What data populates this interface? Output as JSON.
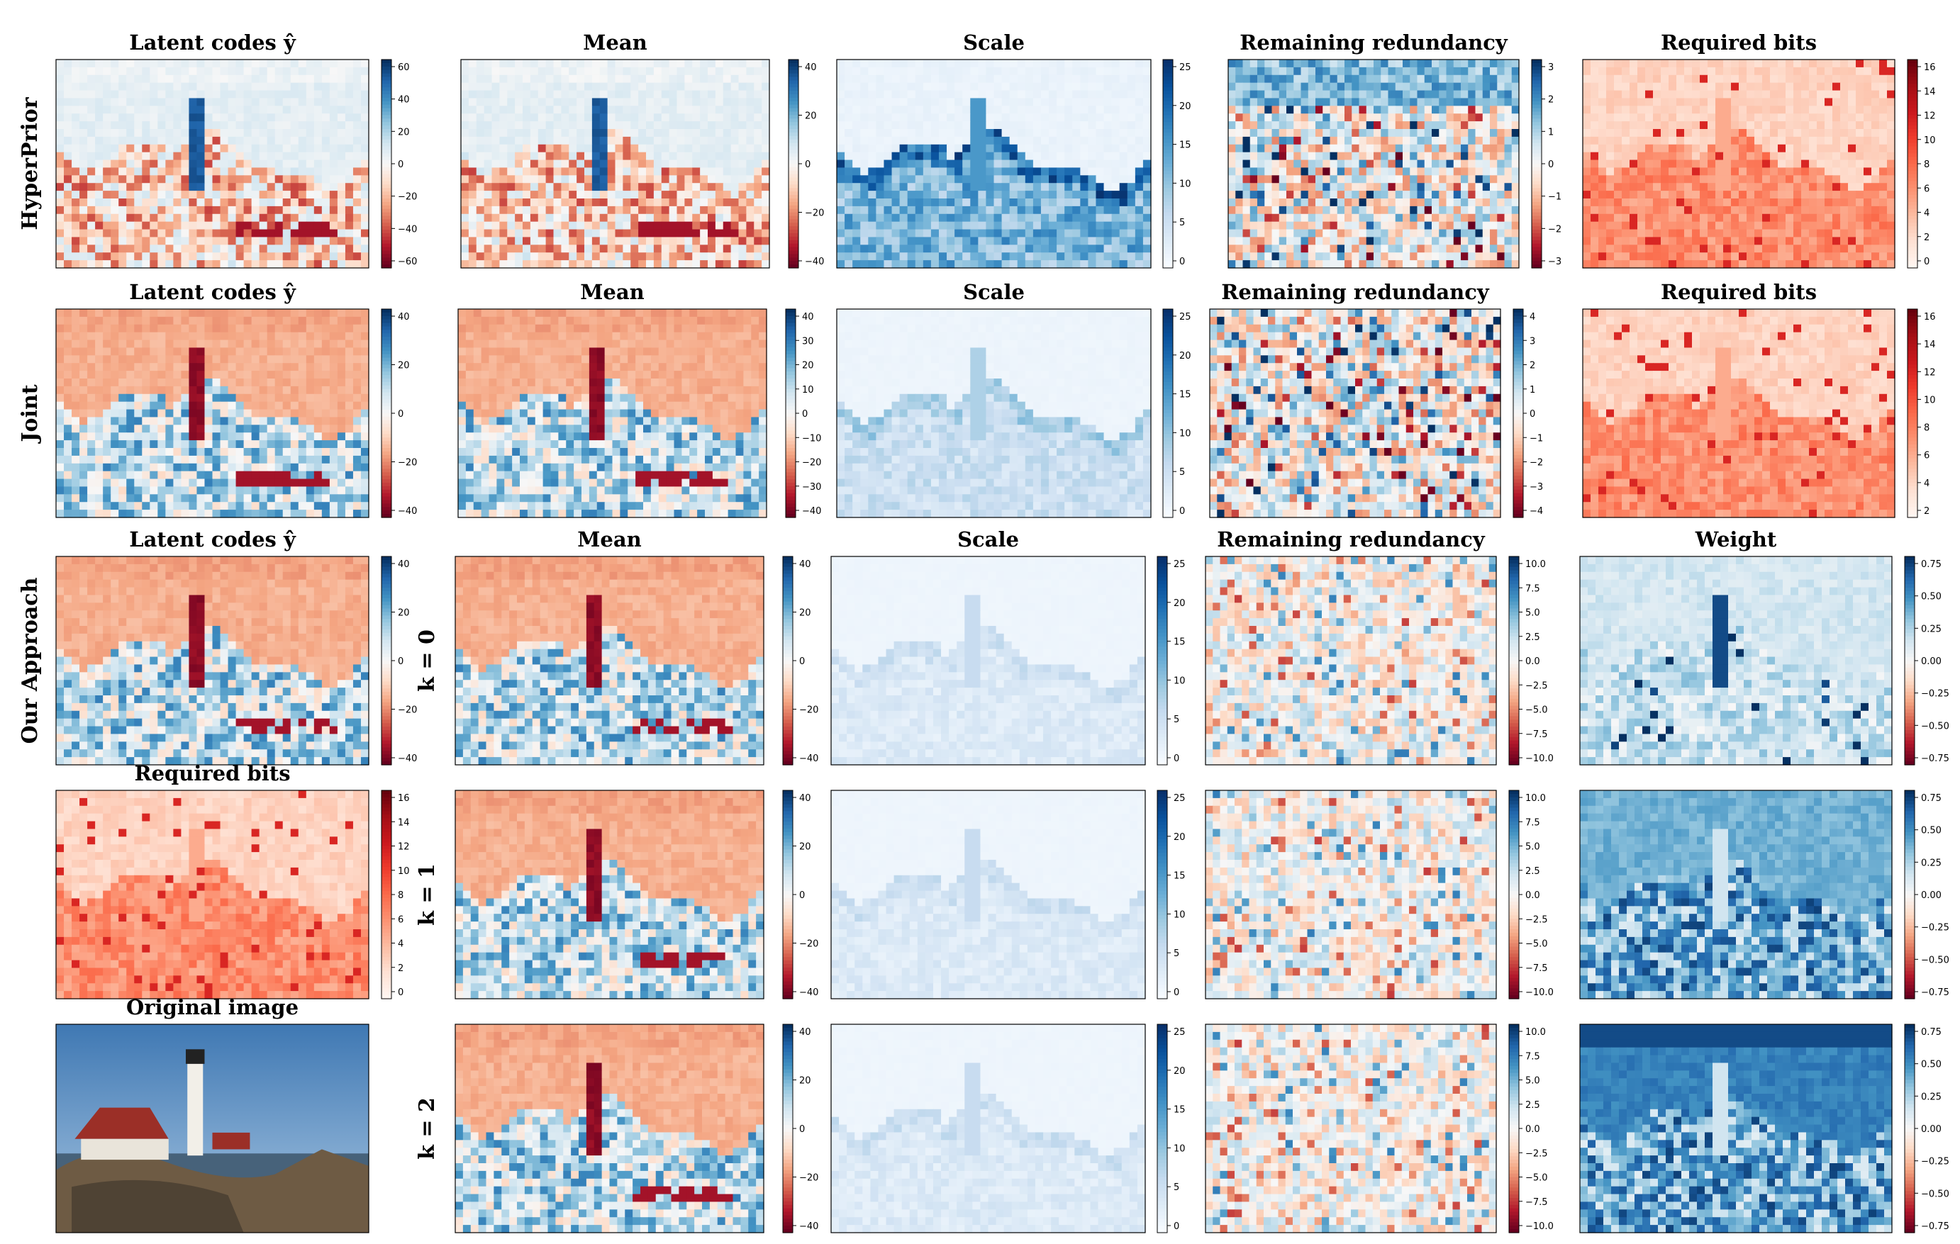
{
  "figure": {
    "rows": [
      {
        "label": "HyperPrior",
        "panels": [
          {
            "title": "Latent codes  ŷ",
            "type": "latent",
            "cmap": "RdBu",
            "ticks": [
              "60",
              "40",
              "20",
              "0",
              "−20",
              "−40",
              "−60"
            ]
          },
          {
            "title": "Mean",
            "type": "latent",
            "cmap": "RdBu",
            "ticks": [
              "40",
              "20",
              "0",
              "−20",
              "−40"
            ]
          },
          {
            "title": "Scale",
            "type": "scale",
            "cmap": "Blues",
            "ticks": [
              "25",
              "20",
              "15",
              "10",
              "5",
              "0"
            ]
          },
          {
            "title": "Remaining redundancy",
            "type": "noise",
            "cmap": "RdBu",
            "ticks": [
              "3",
              "2",
              "1",
              "0",
              "−1",
              "−2",
              "−3"
            ]
          },
          {
            "title": "Required bits",
            "type": "bits",
            "cmap": "Reds",
            "ticks": [
              "16",
              "14",
              "12",
              "10",
              "8",
              "6",
              "4",
              "2",
              "0"
            ]
          }
        ]
      },
      {
        "label": "Joint",
        "panels": [
          {
            "title": "Latent codes  ŷ",
            "type": "latent",
            "cmap": "RdBu",
            "ticks": [
              "40",
              "20",
              "0",
              "−20",
              "−40"
            ]
          },
          {
            "title": "Mean",
            "type": "latent",
            "cmap": "RdBu",
            "ticks": [
              "40",
              "30",
              "20",
              "10",
              "0",
              "−10",
              "−20",
              "−30",
              "−40"
            ]
          },
          {
            "title": "Scale",
            "type": "scale",
            "cmap": "Blues",
            "ticks": [
              "25",
              "20",
              "15",
              "10",
              "5",
              "0"
            ]
          },
          {
            "title": "Remaining redundancy",
            "type": "noise",
            "cmap": "RdBu",
            "ticks": [
              "4",
              "3",
              "2",
              "1",
              "0",
              "−1",
              "−2",
              "−3",
              "−4"
            ]
          },
          {
            "title": "Required bits",
            "type": "bits",
            "cmap": "Reds",
            "ticks": [
              "16",
              "14",
              "12",
              "10",
              "8",
              "6",
              "4",
              "2"
            ]
          }
        ]
      },
      {
        "label": "Our Approach",
        "k_label": "k = 0",
        "panels": [
          {
            "title": "Latent codes  ŷ",
            "type": "latent",
            "cmap": "RdBu",
            "ticks": [
              "40",
              "20",
              "0",
              "−20",
              "−40"
            ]
          },
          {
            "title": "Mean",
            "type": "latent",
            "cmap": "RdBu",
            "ticks": [
              "40",
              "20",
              "0",
              "−20",
              "−40"
            ]
          },
          {
            "title": "Scale",
            "type": "scale",
            "cmap": "Blues",
            "ticks": [
              "25",
              "20",
              "15",
              "10",
              "5",
              "0"
            ]
          },
          {
            "title": "Remaining redundancy",
            "type": "noise",
            "cmap": "RdBu",
            "ticks": [
              "10.0",
              "7.5",
              "5.0",
              "2.5",
              "0.0",
              "−2.5",
              "−5.0",
              "−7.5",
              "−10.0"
            ]
          },
          {
            "title": "Weight",
            "type": "weight",
            "cmap": "RdBu",
            "ticks": [
              "0.75",
              "0.50",
              "0.25",
              "0.00",
              "−0.25",
              "−0.50",
              "−0.75"
            ]
          }
        ]
      },
      {
        "k_label": "k = 1",
        "panels": [
          {
            "title": "Required bits",
            "type": "bits",
            "cmap": "Reds",
            "ticks": [
              "16",
              "14",
              "12",
              "10",
              "8",
              "6",
              "4",
              "2",
              "0"
            ]
          },
          {
            "title": "",
            "type": "latent",
            "cmap": "RdBu",
            "ticks": [
              "40",
              "20",
              "0",
              "−20",
              "−40"
            ]
          },
          {
            "title": "",
            "type": "scale",
            "cmap": "Blues",
            "ticks": [
              "25",
              "20",
              "15",
              "10",
              "5",
              "0"
            ]
          },
          {
            "title": "",
            "type": "noise",
            "cmap": "RdBu",
            "ticks": [
              "10.0",
              "7.5",
              "5.0",
              "2.5",
              "0.0",
              "−2.5",
              "−5.0",
              "−7.5",
              "−10.0"
            ]
          },
          {
            "title": "",
            "type": "weight",
            "cmap": "RdBu",
            "ticks": [
              "0.75",
              "0.50",
              "0.25",
              "0.00",
              "−0.25",
              "−0.50",
              "−0.75"
            ]
          }
        ]
      },
      {
        "k_label": "k = 2",
        "panels": [
          {
            "title": "Original image",
            "type": "photo",
            "cmap": "",
            "ticks": []
          },
          {
            "title": "",
            "type": "latent",
            "cmap": "RdBu",
            "ticks": [
              "40",
              "20",
              "0",
              "−20",
              "−40"
            ]
          },
          {
            "title": "",
            "type": "scale",
            "cmap": "Blues",
            "ticks": [
              "25",
              "20",
              "15",
              "10",
              "5",
              "0"
            ]
          },
          {
            "title": "",
            "type": "noise",
            "cmap": "RdBu",
            "ticks": [
              "10.0",
              "7.5",
              "5.0",
              "2.5",
              "0.0",
              "−2.5",
              "−5.0",
              "−7.5",
              "−10.0"
            ]
          },
          {
            "title": "",
            "type": "weight",
            "cmap": "RdBu",
            "ticks": [
              "0.75",
              "0.50",
              "0.25",
              "0.00",
              "−0.25",
              "−0.50",
              "−0.75"
            ]
          }
        ]
      }
    ]
  }
}
